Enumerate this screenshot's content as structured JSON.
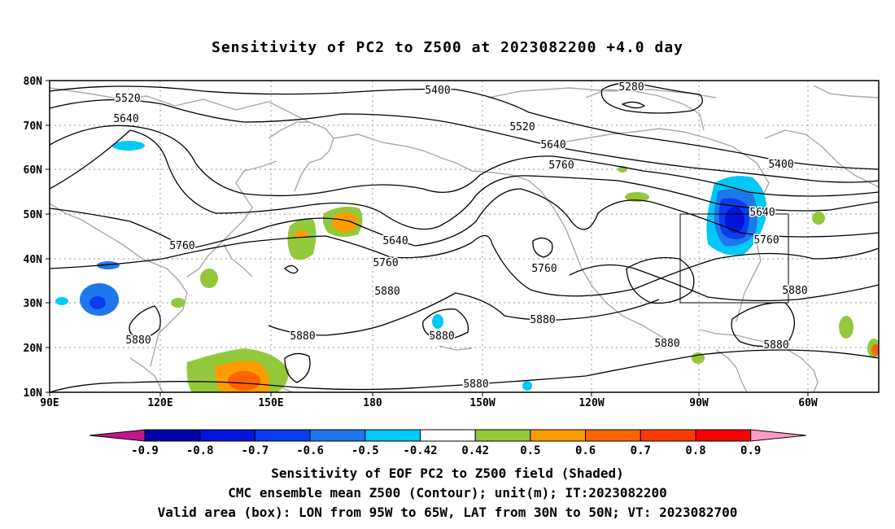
{
  "title": "Sensitivity of PC2 to Z500 at 2023082200 +4.0 day",
  "lat_ticks": [
    "80N",
    "70N",
    "60N",
    "50N",
    "40N",
    "30N",
    "20N",
    "10N"
  ],
  "lon_ticks": [
    "90E",
    "120E",
    "150E",
    "180",
    "150W",
    "120W",
    "90W",
    "60W"
  ],
  "contour_labels": [
    "5280",
    "5400",
    "5400",
    "5520",
    "5520",
    "5640",
    "5640",
    "5640",
    "5640",
    "5760",
    "5760",
    "5760",
    "5760",
    "5760",
    "5880",
    "5880",
    "5880",
    "5880",
    "5880",
    "5880",
    "5880",
    "5880"
  ],
  "colorbar": {
    "labels": [
      "-0.9",
      "-0.8",
      "-0.7",
      "-0.6",
      "-0.5",
      "-0.42",
      "0.42",
      "0.5",
      "0.6",
      "0.7",
      "0.8",
      "0.9"
    ],
    "colors": [
      "#c0188c",
      "#0000a8",
      "#0014dc",
      "#0a3cf0",
      "#1e78ec",
      "#00c8f8",
      "#ffffff",
      "#94c83c",
      "#ff9c00",
      "#ff6400",
      "#ff3c00",
      "#ff0000",
      "#ff9cc8"
    ]
  },
  "captions": [
    "Sensitivity of EOF PC2 to Z500 field (Shaded)",
    "CMC ensemble mean Z500 (Contour); unit(m); IT:2023082200",
    "Valid area (box): LON from 95W to 65W, LAT from 30N to 50N; VT: 2023082700"
  ],
  "valid_area": {
    "lon_from": "95W",
    "lon_to": "65W",
    "lat_from": "30N",
    "lat_to": "50N"
  }
}
